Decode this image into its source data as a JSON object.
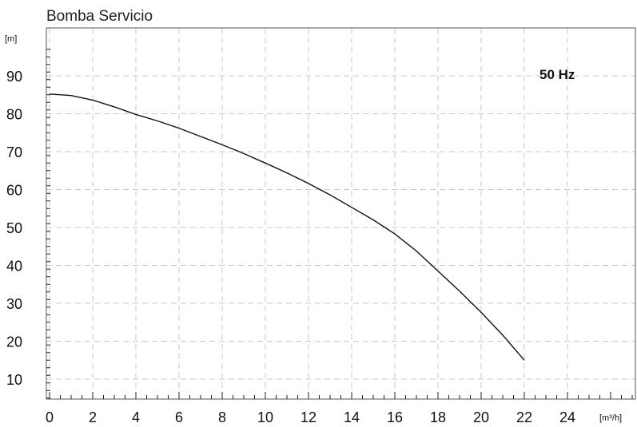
{
  "chart_data": {
    "type": "line",
    "title": "Bomba Servicio",
    "xlabel": "[m³/h]",
    "ylabel": "[m]",
    "annotation": "50 Hz",
    "xlim": [
      0,
      27
    ],
    "ylim": [
      5,
      98
    ],
    "x_ticks": [
      0,
      2,
      4,
      6,
      8,
      10,
      12,
      14,
      16,
      18,
      20,
      22,
      24
    ],
    "y_ticks": [
      10,
      20,
      30,
      40,
      50,
      60,
      70,
      80,
      90
    ],
    "grid": true,
    "series": [
      {
        "x": [
          0,
          1,
          2,
          3,
          4,
          5,
          6,
          7,
          8,
          9,
          10,
          11,
          12,
          13,
          14,
          15,
          16,
          17,
          18,
          19,
          20,
          21,
          22
        ],
        "y": [
          85.2,
          84.8,
          83.6,
          81.8,
          79.8,
          78.1,
          76.2,
          74.0,
          71.8,
          69.5,
          67.0,
          64.4,
          61.6,
          58.6,
          55.3,
          52.0,
          48.3,
          43.8,
          38.5,
          33.2,
          27.6,
          21.6,
          15.0
        ]
      }
    ]
  }
}
